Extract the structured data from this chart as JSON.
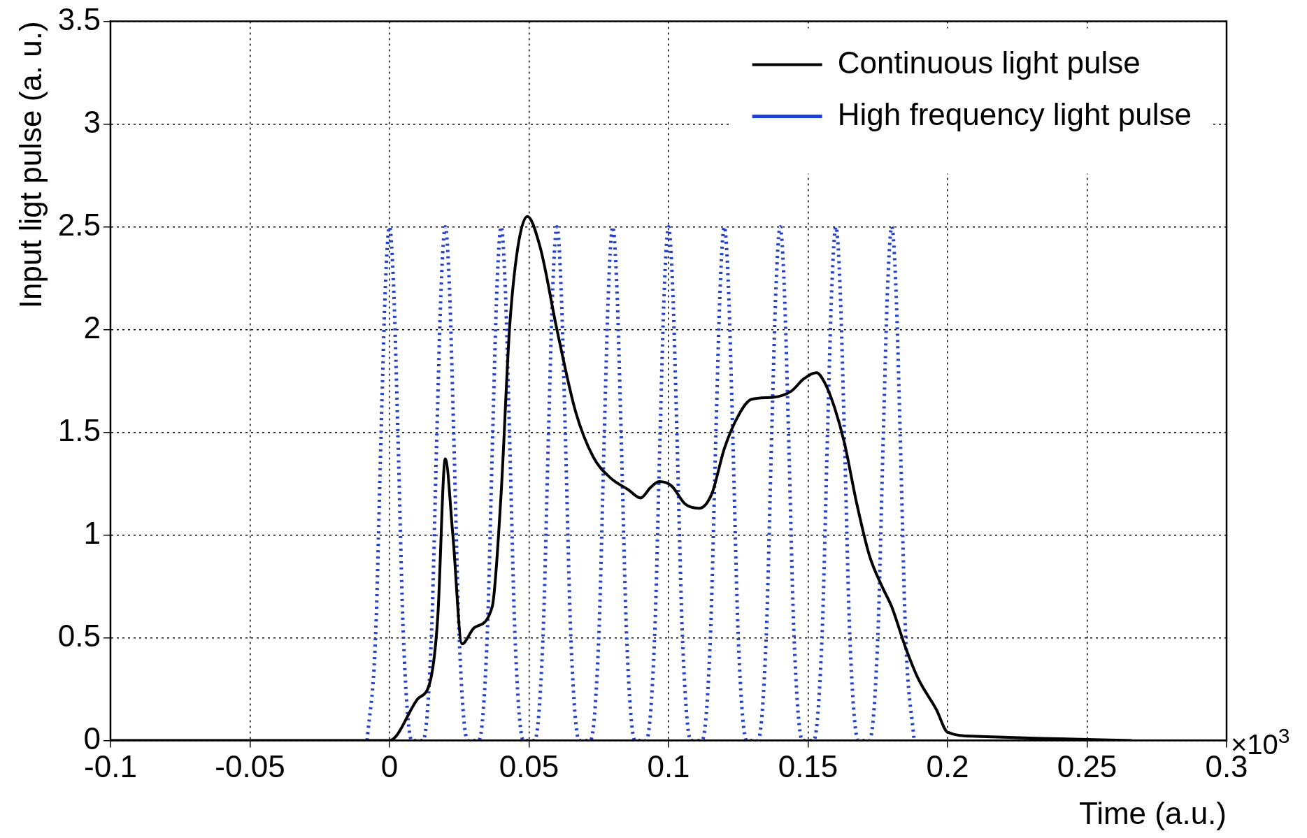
{
  "chart_data": {
    "type": "line",
    "xlabel": "Time (a.u.)",
    "ylabel": "Input ligt pulse (a. u.)",
    "xlim": [
      -0.1,
      0.3
    ],
    "xticks": [
      -0.1,
      -0.05,
      0,
      0.05,
      0.1,
      0.15,
      0.2,
      0.25,
      0.3
    ],
    "ylim": [
      0,
      3.5
    ],
    "yticks": [
      0,
      0.5,
      1,
      1.5,
      2,
      2.5,
      3,
      3.5
    ],
    "grid": true,
    "legend": "top right",
    "marker": "none",
    "annotations": [
      "×10$^{3}$"
    ],
    "series": [
      {
        "name": "Continuous light pulse",
        "color": "#000000",
        "line_style": "solid",
        "x": [
          -0.1,
          0,
          0.01,
          0.0148,
          0.0173,
          0.02,
          0.0227,
          0.026,
          0.0305,
          0.0368,
          0.04,
          0.043,
          0.046,
          0.0494,
          0.054,
          0.06,
          0.0667,
          0.073,
          0.079,
          0.0856,
          0.09,
          0.0935,
          0.0966,
          0.101,
          0.106,
          0.111,
          0.1155,
          0.12,
          0.125,
          0.1297,
          0.1375,
          0.144,
          0.1485,
          0.153,
          0.156,
          0.1595,
          0.163,
          0.1675,
          0.172,
          0.1765,
          0.18,
          0.185,
          0.1895,
          0.196,
          0.2,
          0.21,
          0.2335,
          0.266
        ],
        "values": [
          0,
          0,
          0.2,
          0.3,
          0.6,
          1.37,
          1,
          0.47,
          0.55,
          0.65,
          1.2,
          2,
          2.4,
          2.55,
          2.4,
          2,
          1.6,
          1.38,
          1.28,
          1.22,
          1.18,
          1.23,
          1.26,
          1.24,
          1.15,
          1.13,
          1.2,
          1.42,
          1.58,
          1.66,
          1.67,
          1.7,
          1.76,
          1.79,
          1.74,
          1.62,
          1.45,
          1.15,
          0.9,
          0.75,
          0.65,
          0.45,
          0.3,
          0.15,
          0.04,
          0.02,
          0.01,
          0
        ]
      },
      {
        "name": "High frequency light pulse",
        "color": "#1f3fd8",
        "line_style": "dotted",
        "x": [
          -0.008,
          -0.005,
          -0.003,
          -0.0015,
          0,
          0.0015,
          0.003,
          0.005,
          0.008,
          0.012,
          0.015,
          0.017,
          0.0185,
          0.02,
          0.0215,
          0.023,
          0.025,
          0.028,
          0.032,
          0.035,
          0.037,
          0.0385,
          0.04,
          0.0415,
          0.043,
          0.045,
          0.048,
          0.052,
          0.055,
          0.057,
          0.0585,
          0.06,
          0.0615,
          0.063,
          0.065,
          0.068,
          0.072,
          0.075,
          0.077,
          0.0785,
          0.08,
          0.0815,
          0.083,
          0.085,
          0.088,
          0.092,
          0.095,
          0.097,
          0.0985,
          0.1,
          0.1015,
          0.103,
          0.105,
          0.108,
          0.112,
          0.115,
          0.117,
          0.1185,
          0.12,
          0.1215,
          0.123,
          0.125,
          0.128,
          0.132,
          0.135,
          0.137,
          0.1385,
          0.14,
          0.1415,
          0.143,
          0.145,
          0.148,
          0.152,
          0.155,
          0.157,
          0.1585,
          0.16,
          0.1615,
          0.163,
          0.165,
          0.168,
          0.172,
          0.175,
          0.177,
          0.1785,
          0.18,
          0.1815,
          0.183,
          0.185,
          0.188
        ],
        "values": [
          0,
          0.5,
          1.5,
          2.2,
          2.5,
          2.2,
          1.5,
          0.5,
          0,
          0,
          0.5,
          1.5,
          2.2,
          2.5,
          2.2,
          1.5,
          0.5,
          0,
          0,
          0.5,
          1.5,
          2.2,
          2.5,
          2.2,
          1.5,
          0.5,
          0,
          0,
          0.5,
          1.5,
          2.2,
          2.5,
          2.2,
          1.5,
          0.5,
          0,
          0,
          0.5,
          1.5,
          2.2,
          2.5,
          2.2,
          1.5,
          0.5,
          0,
          0,
          0.5,
          1.5,
          2.2,
          2.5,
          2.2,
          1.5,
          0.5,
          0,
          0,
          0.5,
          1.5,
          2.2,
          2.5,
          2.2,
          1.5,
          0.5,
          0,
          0,
          0.5,
          1.5,
          2.2,
          2.5,
          2.2,
          1.5,
          0.5,
          0,
          0,
          0.5,
          1.5,
          2.2,
          2.5,
          2.2,
          1.5,
          0.5,
          0,
          0,
          0.5,
          1.5,
          2.2,
          2.5,
          2.2,
          1.5,
          0.5,
          0
        ]
      }
    ]
  }
}
